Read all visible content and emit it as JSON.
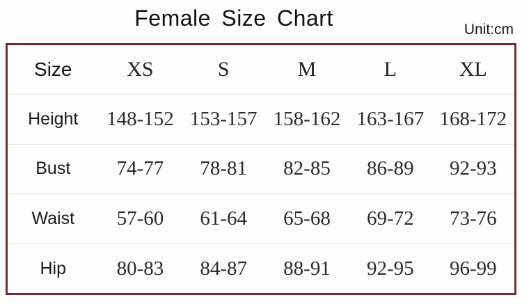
{
  "page": {
    "title": "Female Size Chart",
    "unit_label": "Unit:cm"
  },
  "colors": {
    "table_border": "#702e2e",
    "row_separator": "#e8e8e8",
    "title_text": "#111111",
    "value_text": "#2b2b2b"
  },
  "chart_data": {
    "type": "table",
    "title": "Female Size Chart",
    "unit": "cm",
    "columns": [
      "Size",
      "XS",
      "S",
      "M",
      "L",
      "XL"
    ],
    "rows": [
      {
        "label": "Height",
        "values": [
          "148-152",
          "153-157",
          "158-162",
          "163-167",
          "168-172"
        ]
      },
      {
        "label": "Bust",
        "values": [
          "74-77",
          "78-81",
          "82-85",
          "86-89",
          "92-93"
        ]
      },
      {
        "label": "Waist",
        "values": [
          "57-60",
          "61-64",
          "65-68",
          "69-72",
          "73-76"
        ]
      },
      {
        "label": "Hip",
        "values": [
          "80-83",
          "84-87",
          "88-91",
          "92-95",
          "96-99"
        ]
      }
    ]
  }
}
